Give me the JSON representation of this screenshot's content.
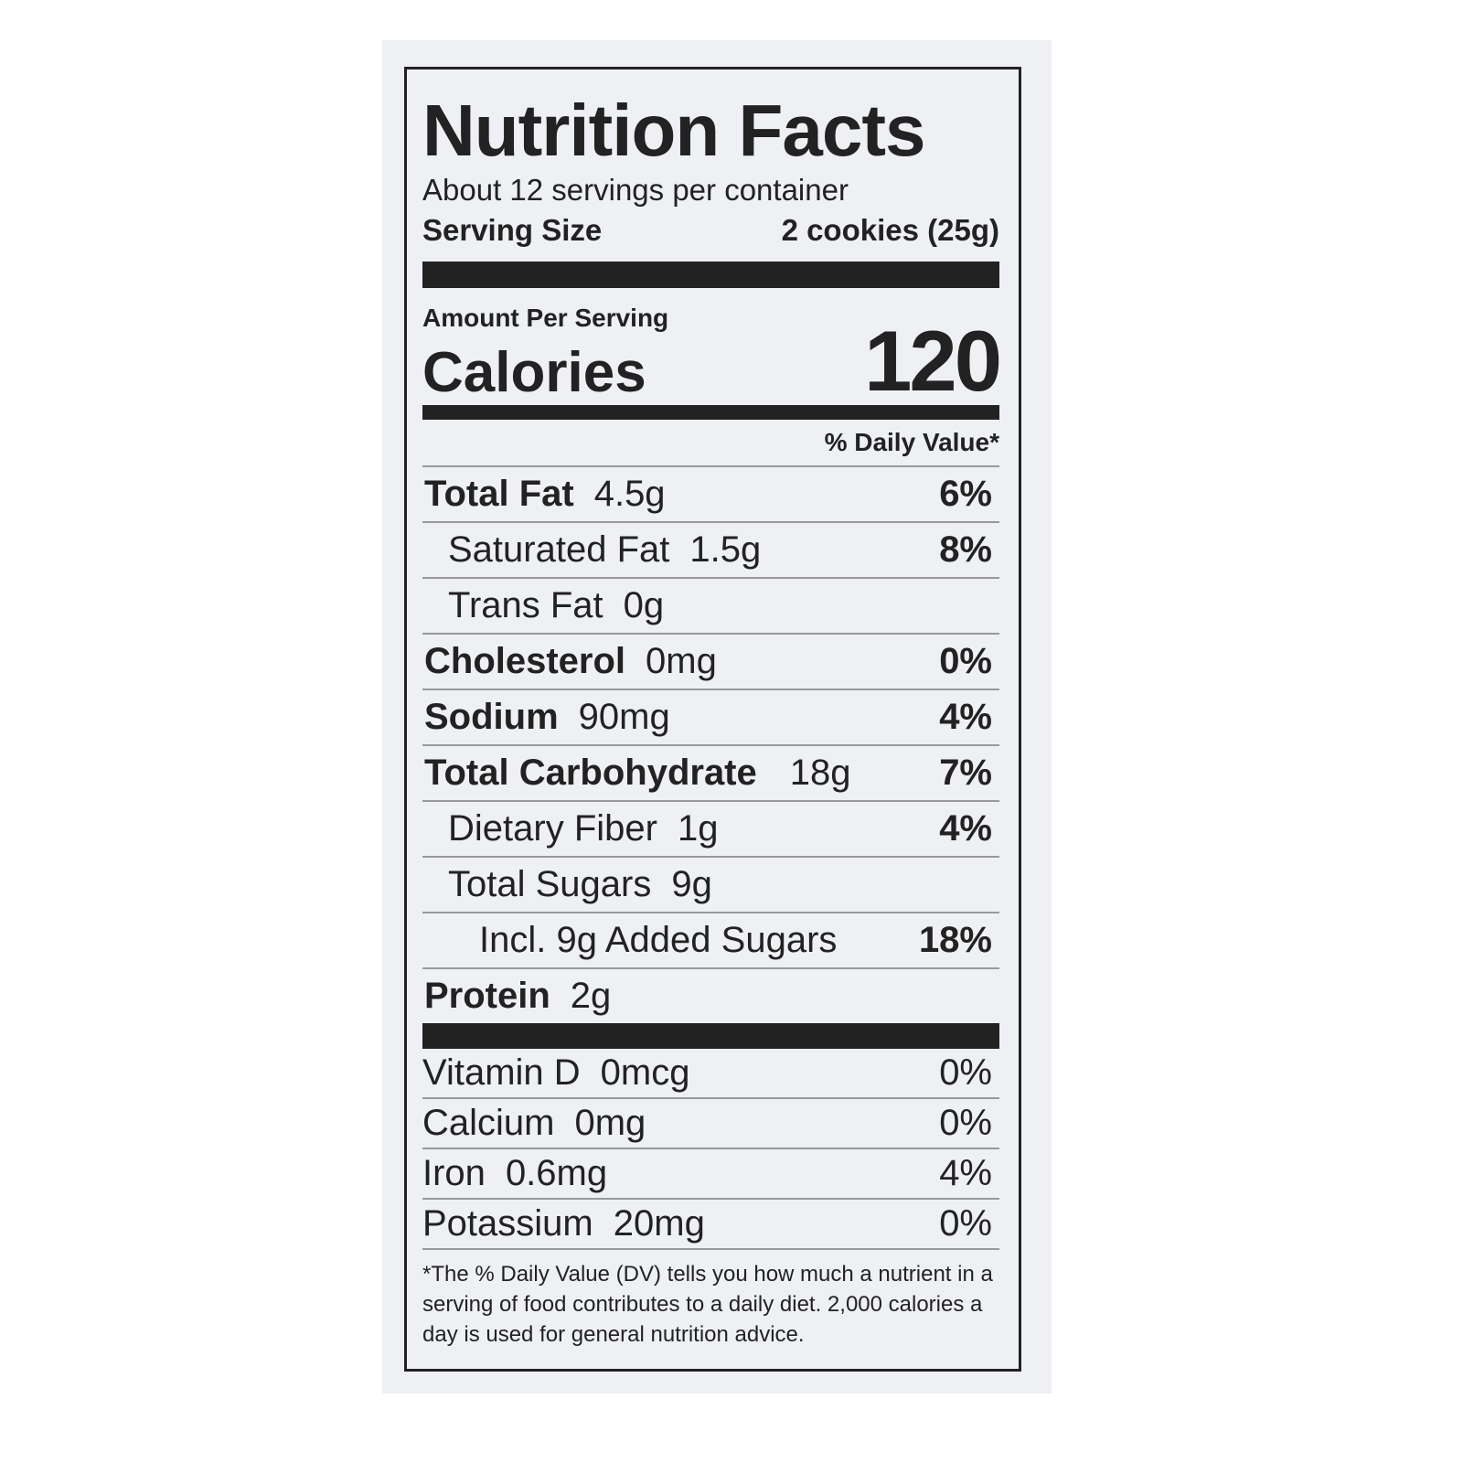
{
  "title": "Nutrition Facts",
  "servings": "About 12 servings per container",
  "serving_size": {
    "label": "Serving Size",
    "value": "2 cookies (25g)"
  },
  "amount_per_serving": "Amount Per Serving",
  "calories": {
    "label": "Calories",
    "value": "120"
  },
  "dv_header": "% Daily Value*",
  "nutrients": [
    {
      "name": "Total Fat",
      "amount": "4.5g",
      "dv": "6%",
      "sub": [
        {
          "name": "Saturated Fat",
          "amount": "1.5g",
          "dv": "8%"
        },
        {
          "name": "Trans Fat",
          "amount": "0g"
        }
      ]
    },
    {
      "name": "Cholesterol",
      "amount": "0mg",
      "dv": "0%"
    },
    {
      "name": "Sodium",
      "amount": "90mg",
      "dv": "4%"
    },
    {
      "name": "Total Carbohydrate",
      "amount": "18g",
      "dv": "7%",
      "sub": [
        {
          "name": "Dietary Fiber",
          "amount": "1g",
          "dv": "4%"
        },
        {
          "name": "Total Sugars",
          "amount": "9g",
          "sub": [
            {
              "name": "Incl. 9g Added Sugars",
              "dv": "18%"
            }
          ]
        }
      ]
    },
    {
      "name": "Protein",
      "amount": "2g"
    }
  ],
  "vitamins": [
    {
      "name": "Vitamin D",
      "amount": "0mcg",
      "dv": "0%"
    },
    {
      "name": "Calcium",
      "amount": "0mg",
      "dv": "0%"
    },
    {
      "name": "Iron",
      "amount": "0.6mg",
      "dv": "4%"
    },
    {
      "name": "Potassium",
      "amount": "20mg",
      "dv": "0%"
    }
  ],
  "footnote": "*The % Daily Value (DV) tells you how much a nutrient in a serving of food contributes to a daily diet. 2,000 calories a day is used for general nutrition advice."
}
